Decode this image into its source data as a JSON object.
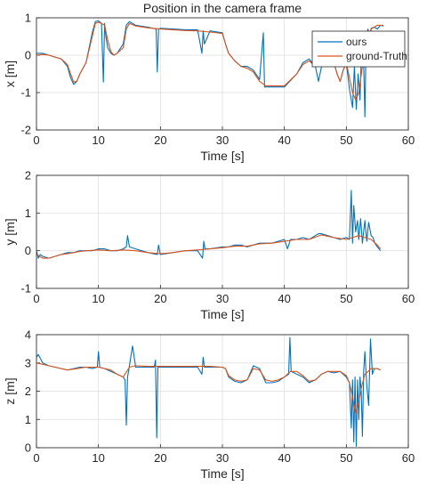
{
  "chart_data": [
    {
      "type": "line",
      "title": "Position in the camera frame",
      "xlabel": "Time [s]",
      "ylabel": "x [m]",
      "xlim": [
        0,
        60
      ],
      "ylim": [
        -2,
        1
      ],
      "xticks": [
        "0",
        "10",
        "20",
        "30",
        "40",
        "50",
        "60"
      ],
      "yticks": [
        "-2",
        "-1",
        "0",
        "1"
      ],
      "grid": true,
      "legend": {
        "placement": "top-right",
        "entries": [
          "ours",
          "ground-Truth"
        ]
      },
      "series": [
        {
          "name": "ours",
          "color": "#0072BD",
          "x": [
            0,
            1,
            2,
            3,
            4,
            5,
            5.5,
            6,
            6.5,
            7,
            8,
            9,
            9.5,
            10,
            10.5,
            10.8,
            11,
            11.2,
            11.5,
            12,
            12.5,
            13,
            14,
            14.5,
            15,
            15.5,
            16,
            18,
            19.3,
            19.5,
            19.7,
            20,
            22,
            24,
            26,
            26.7,
            26.9,
            27.1,
            28,
            30,
            30.5,
            31,
            32,
            33,
            34,
            35,
            36,
            36.6,
            36.8,
            37,
            38,
            40,
            42,
            43,
            44,
            45,
            45.5,
            46,
            47,
            48,
            48.5,
            49,
            49.5,
            50,
            50.5,
            51,
            51.3,
            51.6,
            51.9,
            52.2,
            52.5,
            52.8,
            53,
            53.2,
            53.5,
            53.8,
            54,
            54.5,
            55,
            55.5,
            56
          ],
          "y": [
            0.05,
            0.05,
            0,
            -0.05,
            -0.1,
            -0.3,
            -0.6,
            -0.78,
            -0.7,
            -0.5,
            -0.2,
            0.6,
            0.9,
            0.92,
            0.85,
            -0.72,
            0.85,
            0.5,
            0.2,
            0.05,
            0.0,
            0.05,
            0.3,
            0.8,
            0.9,
            0.85,
            0.8,
            0.75,
            0.7,
            -0.45,
            0.7,
            0.72,
            0.7,
            0.68,
            0.68,
            0.05,
            0.65,
            0.3,
            0.65,
            0.6,
            0.3,
            0.05,
            -0.15,
            -0.3,
            -0.3,
            -0.4,
            -0.65,
            0.6,
            -0.85,
            -0.85,
            -0.85,
            -0.85,
            -0.5,
            -0.2,
            -0.1,
            -0.3,
            -0.7,
            -0.3,
            -0.15,
            -0.2,
            -0.5,
            -0.7,
            -0.4,
            -0.2,
            -0.9,
            -1.4,
            -0.3,
            -1.45,
            -0.5,
            -1.2,
            0.5,
            -0.2,
            -1.65,
            0.5,
            0.7,
            0.2,
            0.72,
            0.75,
            0.7,
            0.8,
            0.78
          ]
        },
        {
          "name": "ground-Truth",
          "color": "#D95319",
          "x": [
            0,
            1,
            2,
            3,
            4,
            5,
            5.5,
            6,
            6.5,
            7,
            8,
            9,
            9.5,
            10,
            10.5,
            11,
            11.5,
            12,
            12.5,
            13,
            14,
            14.5,
            15,
            15.5,
            16,
            18,
            20,
            22,
            24,
            26,
            28,
            30,
            30.5,
            31,
            32,
            33,
            34,
            35,
            36,
            37,
            38,
            40,
            42,
            43,
            44,
            45,
            46,
            47,
            48,
            48.5,
            49,
            49.5,
            50,
            50.5,
            51,
            51.5,
            52,
            52.5,
            53,
            53.5,
            54,
            54.5,
            55,
            55.5,
            56
          ],
          "y": [
            0.0,
            0.02,
            0.0,
            -0.05,
            -0.1,
            -0.25,
            -0.5,
            -0.72,
            -0.7,
            -0.5,
            -0.2,
            0.5,
            0.85,
            0.88,
            0.85,
            0.8,
            0.4,
            0.1,
            0.0,
            0.05,
            0.2,
            0.7,
            0.85,
            0.82,
            0.78,
            0.73,
            0.7,
            0.68,
            0.66,
            0.65,
            0.62,
            0.58,
            0.3,
            0.05,
            -0.15,
            -0.3,
            -0.35,
            -0.45,
            -0.7,
            -0.82,
            -0.82,
            -0.82,
            -0.5,
            -0.25,
            -0.15,
            -0.3,
            -0.2,
            -0.15,
            -0.2,
            -0.5,
            -0.7,
            -0.4,
            -0.2,
            -0.6,
            -1.0,
            -1.2,
            -1.0,
            -0.4,
            0.1,
            0.5,
            0.7,
            0.75,
            0.8,
            0.8,
            0.8
          ]
        }
      ]
    },
    {
      "type": "line",
      "title": "",
      "xlabel": "Time [s]",
      "ylabel": "y [m]",
      "xlim": [
        0,
        60
      ],
      "ylim": [
        -1,
        2
      ],
      "xticks": [
        "0",
        "10",
        "20",
        "30",
        "40",
        "50",
        "60"
      ],
      "yticks": [
        "-1",
        "0",
        "1",
        "2"
      ],
      "grid": true,
      "series": [
        {
          "name": "ours",
          "color": "#0072BD",
          "x": [
            0,
            0.3,
            0.6,
            1,
            2,
            3,
            4,
            5,
            6,
            7,
            8,
            9,
            10,
            11,
            12,
            13,
            14,
            14.5,
            14.7,
            15,
            16,
            18,
            19.5,
            19.7,
            20,
            22,
            24,
            26,
            26.8,
            27,
            27.2,
            28,
            30,
            31,
            32,
            33,
            34,
            35,
            36,
            37,
            38,
            39,
            40,
            40.5,
            41,
            42,
            43,
            44,
            45,
            45.5,
            46,
            47,
            48,
            49,
            50,
            50.5,
            50.8,
            51,
            51.2,
            51.5,
            51.8,
            52,
            52.3,
            52.6,
            53,
            53.3,
            53.6,
            54,
            54.3,
            54.6,
            55,
            55.5
          ],
          "y": [
            0.0,
            -0.2,
            -0.1,
            -0.15,
            -0.2,
            -0.15,
            -0.1,
            -0.05,
            -0.05,
            0.0,
            0.0,
            0.0,
            0.05,
            0.05,
            0.0,
            0.0,
            0.05,
            0.1,
            0.4,
            0.1,
            0.05,
            -0.05,
            -0.1,
            0.15,
            -0.1,
            -0.05,
            0.0,
            0.0,
            -0.2,
            0.25,
            0.05,
            0.05,
            0.1,
            0.1,
            0.15,
            0.15,
            0.1,
            0.15,
            0.2,
            0.2,
            0.2,
            0.25,
            0.3,
            0.05,
            0.3,
            0.3,
            0.35,
            0.3,
            0.4,
            0.45,
            0.45,
            0.4,
            0.35,
            0.3,
            0.35,
            0.3,
            1.6,
            0.2,
            1.2,
            0.5,
            0.8,
            0.3,
            0.85,
            0.2,
            0.8,
            0.25,
            0.75,
            0.4,
            0.35,
            0.2,
            0.1,
            0.0
          ]
        },
        {
          "name": "ground-Truth",
          "color": "#D95319",
          "x": [
            0,
            1,
            2,
            3,
            4,
            5,
            6,
            7,
            8,
            10,
            12,
            14,
            16,
            18,
            20,
            22,
            24,
            26,
            28,
            30,
            32,
            34,
            36,
            38,
            40,
            42,
            44,
            46,
            48,
            50,
            51,
            52,
            53,
            54,
            55,
            55.5
          ],
          "y": [
            -0.1,
            -0.2,
            -0.2,
            -0.15,
            -0.1,
            -0.08,
            -0.05,
            -0.02,
            0.0,
            0.02,
            0.0,
            0.02,
            0.0,
            -0.05,
            -0.08,
            -0.05,
            0.0,
            0.02,
            0.05,
            0.08,
            0.12,
            0.12,
            0.18,
            0.2,
            0.25,
            0.3,
            0.3,
            0.42,
            0.35,
            0.3,
            0.35,
            0.4,
            0.35,
            0.3,
            0.15,
            0.05
          ]
        }
      ]
    },
    {
      "type": "line",
      "title": "",
      "xlabel": "Time [s]",
      "ylabel": "z [m]",
      "xlim": [
        0,
        60
      ],
      "ylim": [
        0,
        4
      ],
      "xticks": [
        "0",
        "10",
        "20",
        "30",
        "40",
        "50",
        "60"
      ],
      "yticks": [
        "0",
        "1",
        "2",
        "3",
        "4"
      ],
      "grid": true,
      "series": [
        {
          "name": "ours",
          "color": "#0072BD",
          "x": [
            0,
            0.3,
            1,
            2,
            3,
            4,
            5,
            6,
            7,
            8,
            9,
            9.8,
            10,
            10.2,
            11,
            12,
            13,
            14,
            14.3,
            14.5,
            14.7,
            15,
            15.5,
            16,
            18,
            19,
            19.2,
            19.4,
            19.6,
            20,
            22,
            24,
            26,
            26.7,
            26.9,
            27.1,
            28,
            30,
            30.5,
            31,
            32,
            33,
            34,
            35,
            36,
            37,
            38,
            39,
            40,
            40.7,
            40.9,
            41.1,
            42,
            43,
            44,
            45,
            46,
            47,
            48,
            49,
            50,
            50.5,
            50.8,
            51,
            51.2,
            51.4,
            51.6,
            51.8,
            52,
            52.2,
            52.4,
            52.6,
            52.8,
            53,
            53.3,
            53.6,
            53.9,
            54.2,
            54.5,
            55,
            55.5
          ],
          "y": [
            3.2,
            3.3,
            3.0,
            2.9,
            2.85,
            2.8,
            2.75,
            2.8,
            2.85,
            2.85,
            2.8,
            2.85,
            3.4,
            2.85,
            2.8,
            2.7,
            2.6,
            2.5,
            2.4,
            0.8,
            2.5,
            2.9,
            3.6,
            2.85,
            2.85,
            2.85,
            3.1,
            0.35,
            2.85,
            2.85,
            2.85,
            2.85,
            2.85,
            2.6,
            3.2,
            2.85,
            2.85,
            2.85,
            2.8,
            2.5,
            2.35,
            2.3,
            2.4,
            2.9,
            2.8,
            2.3,
            2.3,
            2.35,
            2.5,
            2.6,
            3.9,
            2.7,
            2.6,
            2.5,
            2.3,
            2.4,
            2.6,
            2.7,
            2.65,
            2.7,
            2.5,
            2.3,
            0.7,
            2.4,
            0.2,
            2.5,
            0.05,
            2.4,
            1.0,
            2.5,
            2.0,
            0.4,
            2.7,
            3.4,
            2.2,
            1.5,
            3.85,
            2.6,
            2.8,
            2.8,
            2.75
          ]
        },
        {
          "name": "ground-Truth",
          "color": "#D95319",
          "x": [
            0,
            1,
            2,
            3,
            4,
            5,
            6,
            8,
            10,
            12,
            13,
            14,
            15,
            16,
            18,
            20,
            22,
            24,
            26,
            28,
            30,
            30.5,
            31,
            32,
            33,
            34,
            35,
            36,
            37,
            38,
            39,
            40,
            41,
            42,
            43,
            44,
            45,
            46,
            47,
            48,
            49,
            50,
            50.5,
            51,
            51.5,
            52,
            52.5,
            53,
            53.5,
            54,
            54.5,
            55,
            55.5
          ],
          "y": [
            3.0,
            2.95,
            2.9,
            2.85,
            2.8,
            2.75,
            2.78,
            2.85,
            2.85,
            2.75,
            2.6,
            2.5,
            2.85,
            2.9,
            2.88,
            2.88,
            2.88,
            2.88,
            2.88,
            2.88,
            2.85,
            2.8,
            2.55,
            2.4,
            2.35,
            2.4,
            2.8,
            2.75,
            2.4,
            2.35,
            2.4,
            2.5,
            2.7,
            2.7,
            2.55,
            2.35,
            2.4,
            2.6,
            2.7,
            2.7,
            2.7,
            2.55,
            2.3,
            1.8,
            1.2,
            1.6,
            2.2,
            2.6,
            2.7,
            2.8,
            2.8,
            2.8,
            2.75
          ]
        }
      ]
    }
  ]
}
